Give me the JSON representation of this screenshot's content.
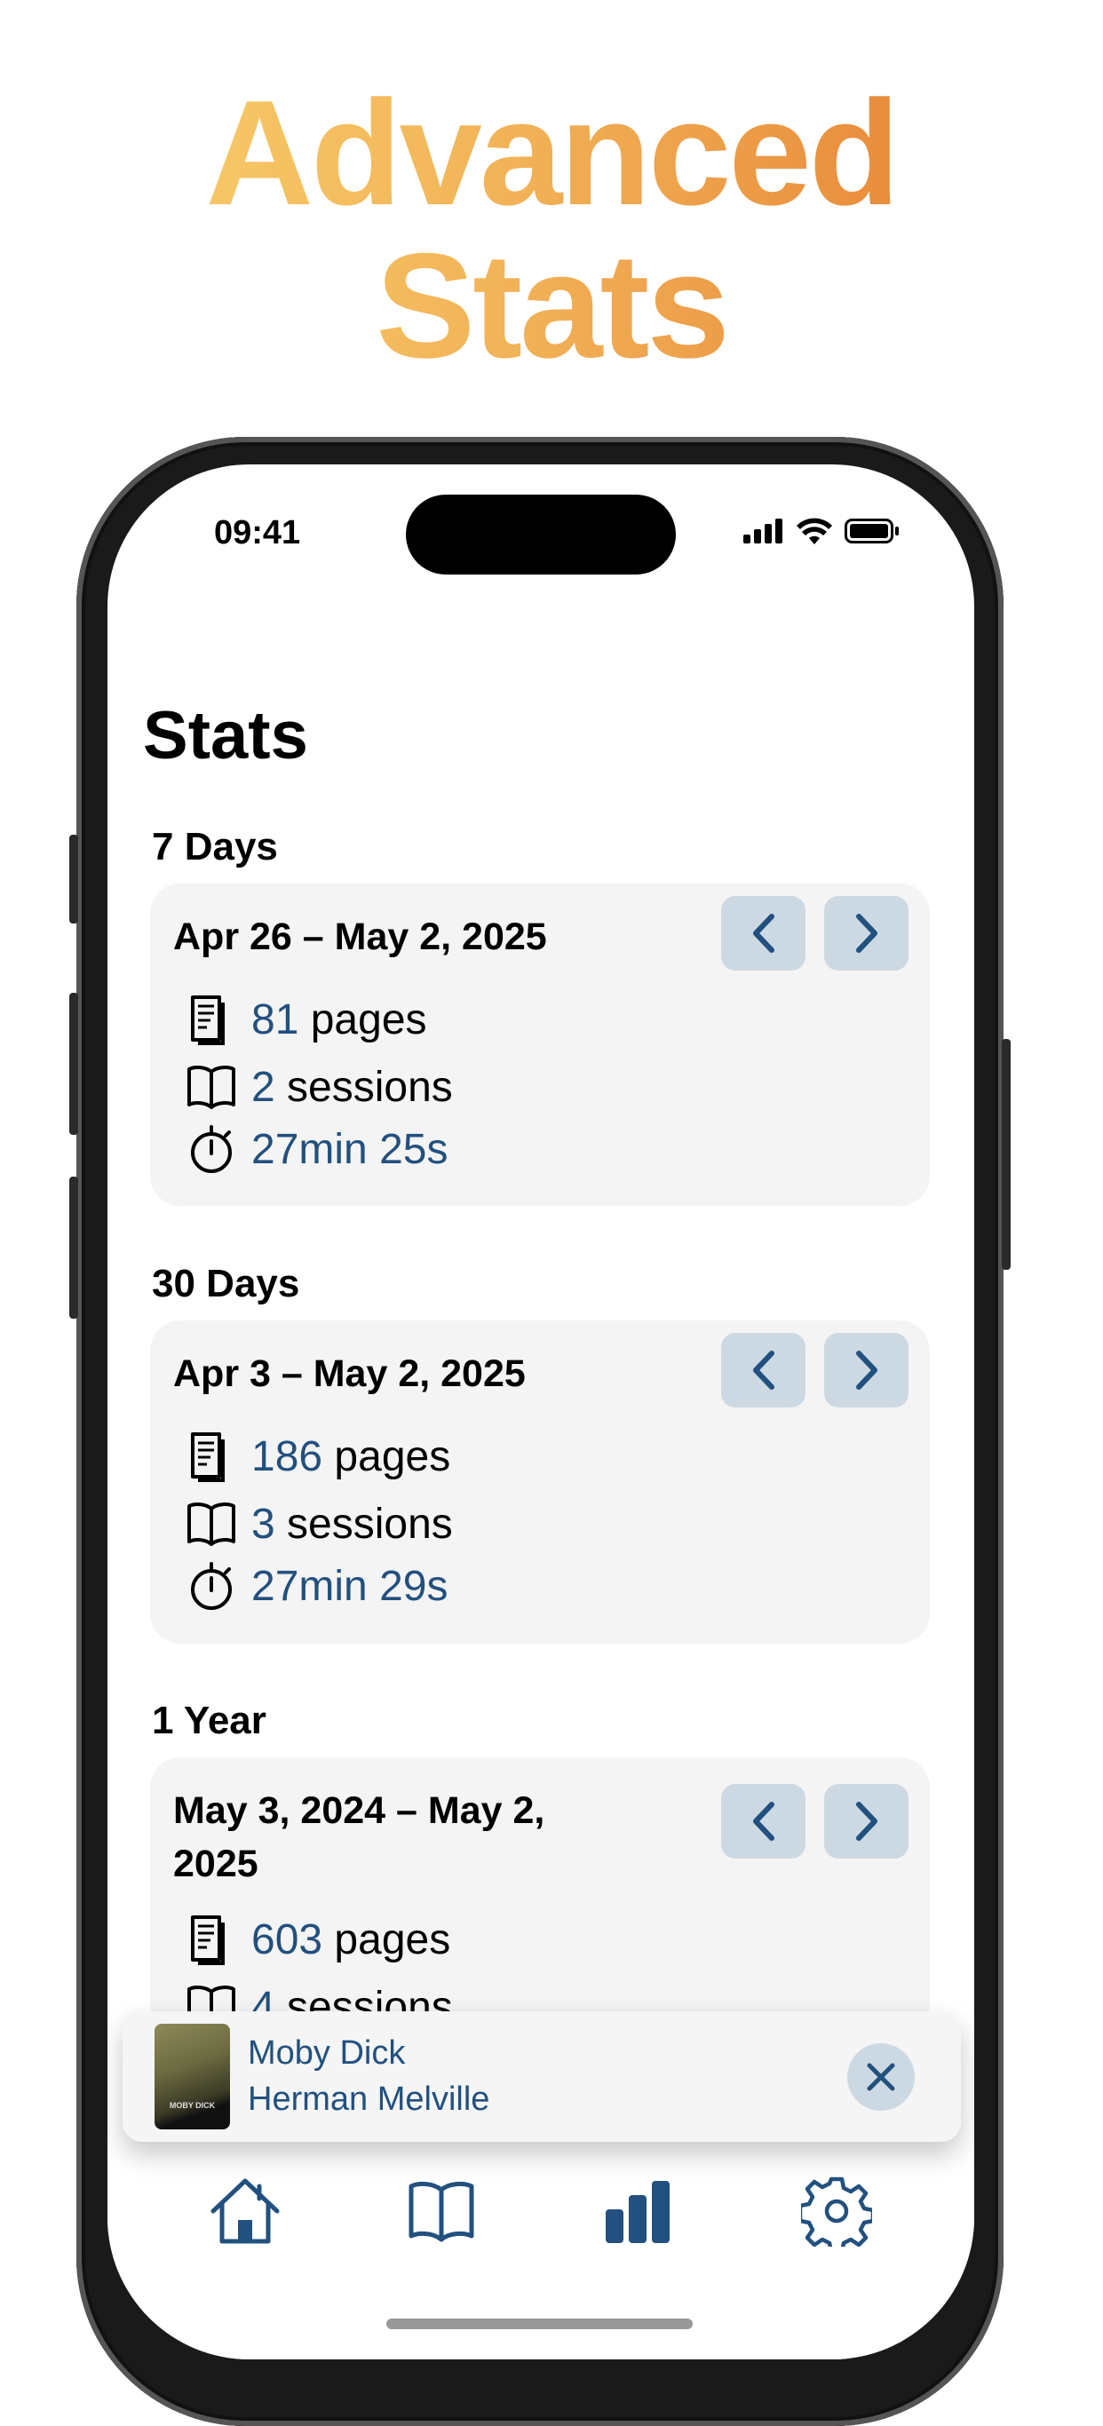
{
  "headline": {
    "line1": "Advanced",
    "line2": "Stats"
  },
  "status_bar": {
    "time": "09:41"
  },
  "page_title": "Stats",
  "colors": {
    "accent": "#22507F",
    "button_bg": "#CCD9E3",
    "card_bg": "#F4F4F4",
    "gradient_start": "#F9D470",
    "gradient_end": "#E4782E"
  },
  "sections": [
    {
      "label": "7 Days",
      "range": "Apr 26 – May 2, 2025",
      "pages": "81",
      "pages_label": " pages",
      "sessions": "2",
      "sessions_label": " sessions",
      "time": "27min 25s"
    },
    {
      "label": "30 Days",
      "range": "Apr 3 – May 2, 2025",
      "pages": "186",
      "pages_label": " pages",
      "sessions": "3",
      "sessions_label": " sessions",
      "time": "27min 29s"
    },
    {
      "label": "1 Year",
      "range": "May 3, 2024 – May 2, 2025",
      "pages": "603",
      "pages_label": " pages",
      "sessions": "4",
      "sessions_label": " sessions"
    }
  ],
  "mini_player": {
    "title": "Moby Dick",
    "author": "Herman Melville",
    "cover_text": "MOBY DICK"
  },
  "tabs": [
    {
      "icon": "home-icon"
    },
    {
      "icon": "book-icon"
    },
    {
      "icon": "bar-chart-icon",
      "active": true
    },
    {
      "icon": "gear-icon"
    }
  ]
}
